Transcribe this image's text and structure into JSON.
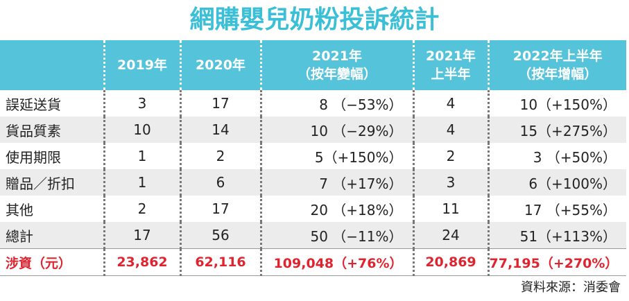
{
  "title": "網購嬰兒奶粉投訴統計",
  "headers": [
    {
      "line1": "",
      "line2": ""
    },
    {
      "line1": "2019年",
      "line2": ""
    },
    {
      "line1": "2020年",
      "line2": ""
    },
    {
      "line1": "2021年",
      "line2": "（按年變幅）"
    },
    {
      "line1": "2021年",
      "line2": "上半年"
    },
    {
      "line1": "2022年上半年",
      "line2": "（按年增幅）"
    }
  ],
  "rows": [
    {
      "label": "誤延送貨",
      "y2019": "3",
      "y2020": "17",
      "y2021": "8 （−53%）",
      "h2021": "4",
      "h2022": "10（+150%）"
    },
    {
      "label": "貨品質素",
      "y2019": "10",
      "y2020": "14",
      "y2021": "10 （−29%）",
      "h2021": "4",
      "h2022": "15（+275%）"
    },
    {
      "label": "使用期限",
      "y2019": "1",
      "y2020": "2",
      "y2021": "5（+150%）",
      "h2021": "2",
      "h2022": "3 （+50%）"
    },
    {
      "label": "贈品／折扣",
      "y2019": "1",
      "y2020": "6",
      "y2021": "7 （+17%）",
      "h2021": "3",
      "h2022": "6（+100%）"
    },
    {
      "label": "其他",
      "y2019": "2",
      "y2020": "17",
      "y2021": "20 （+18%）",
      "h2021": "11",
      "h2022": "17 （+55%）"
    },
    {
      "label": "總計",
      "y2019": "17",
      "y2020": "56",
      "y2021": "50 （−11%）",
      "h2021": "24",
      "h2022": "51（+113%）"
    },
    {
      "label": "涉資（元）",
      "y2019": "23,862",
      "y2020": "62,116",
      "y2021": "109,048（+76%）",
      "h2021": "20,869",
      "h2022": "77,195（+270%）"
    }
  ],
  "source": "資料來源：消委會",
  "colors": {
    "title": "#3bbfd6",
    "header_bg": "#55c3da",
    "money": "#e0242f",
    "stripe": "#ececec"
  }
}
